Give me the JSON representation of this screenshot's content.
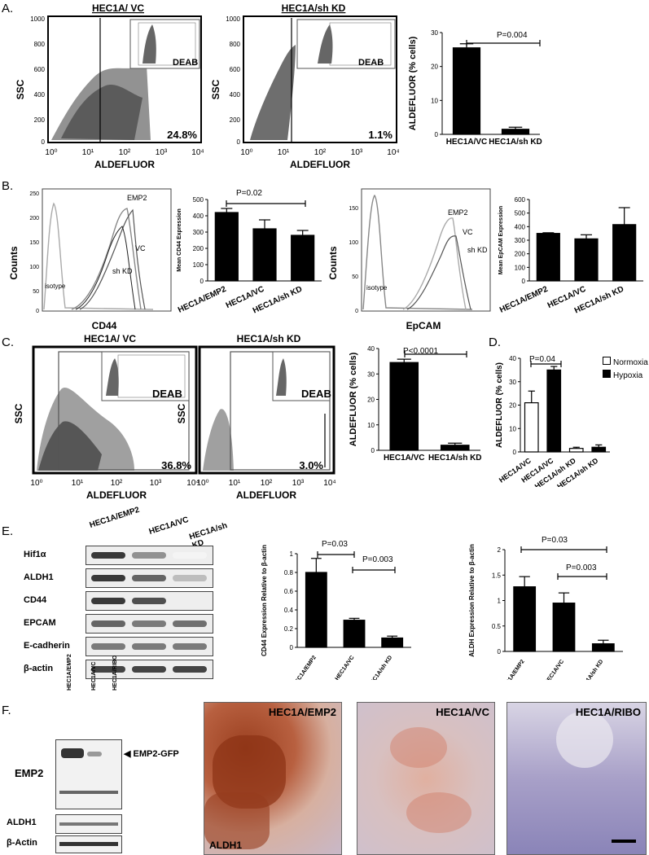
{
  "panels": {
    "A": {
      "letter": "A.",
      "flow": [
        {
          "title": "HEC1A/ VC",
          "inset": "DEAB",
          "percent": "24.8%",
          "ylabel": "SSC",
          "xlabel": "ALDEFLUOR"
        },
        {
          "title": "HEC1A/sh KD",
          "inset": "DEAB",
          "percent": "1.1%",
          "ylabel": "SSC",
          "xlabel": "ALDEFLUOR"
        }
      ],
      "yticks": [
        "1000",
        "800",
        "600",
        "400",
        "200",
        "0"
      ],
      "xticks": [
        "10⁰",
        "10¹",
        "10²",
        "10³",
        "10⁴"
      ],
      "pvalue": "P=0.004"
    },
    "B": {
      "letter": "B.",
      "hist1": {
        "ylabel": "Counts",
        "xlabel": "CD44",
        "labels": [
          "EMP2",
          "VC",
          "sh KD",
          "isotype"
        ],
        "yticks": [
          "250",
          "200",
          "150",
          "100",
          "50",
          "0"
        ]
      },
      "hist2": {
        "ylabel": "Counts",
        "xlabel": "EpCAM",
        "labels": [
          "EMP2",
          "VC",
          "sh KD",
          "isotype"
        ],
        "yticks": [
          "150",
          "100",
          "50",
          "0"
        ]
      },
      "pvalue": "P=0.02"
    },
    "C": {
      "letter": "C.",
      "flow": [
        {
          "title": "HEC1A/ VC",
          "inset": "DEAB",
          "percent": "36.8%",
          "ylabel": "SSC",
          "xlabel": "ALDEFLUOR"
        },
        {
          "title": "HEC1A/sh KD",
          "inset": "DEAB",
          "percent": "3.0%",
          "ylabel": "SSC",
          "xlabel": "ALDEFLUOR"
        }
      ],
      "pvalue": "P<0.0001"
    },
    "D": {
      "letter": "D.",
      "pvalue": "P=0.04",
      "legend": [
        "Normoxia",
        "Hypoxia"
      ]
    },
    "E": {
      "letter": "E.",
      "lanes": [
        "HEC1A/EMP2",
        "HEC1A/VC",
        "HEC1A/sh KD"
      ],
      "blots": [
        "Hif1α",
        "ALDH1",
        "CD44",
        "EPCAM",
        "E-cadherin",
        "β-actin"
      ],
      "pvalues_cd44": [
        "P=0.03",
        "P=0.003"
      ],
      "pvalues_aldh": [
        "P=0.03",
        "P=0.003"
      ]
    },
    "F": {
      "letter": "F.",
      "lanes": [
        "HEC1A/EMP2",
        "HEC1A/VC",
        "HEC1A/RIBO"
      ],
      "blots": [
        "EMP2",
        "ALDH1",
        "β-Actin"
      ],
      "arrow_label": "◀ EMP2-GFP",
      "ihc": [
        "HEC1A/EMP2",
        "HEC1A/VC",
        "HEC1A/RIBO"
      ],
      "ihc_stain": "ALDH1"
    }
  },
  "chart_data": [
    {
      "type": "bar",
      "panel": "A",
      "categories": [
        "HEC1A/VC",
        "HEC1A/sh KD"
      ],
      "values": [
        25.5,
        1.5
      ],
      "errors": [
        1.2,
        0.6
      ],
      "ylabel": "ALDEFLUOR (% cells)",
      "ylim": [
        0,
        30
      ],
      "yticks": [
        0,
        10,
        20,
        30
      ]
    },
    {
      "type": "bar",
      "panel": "B1",
      "categories": [
        "HEC1A/EMP2",
        "HEC1A/VC",
        "HEC1A/sh KD"
      ],
      "values": [
        420,
        320,
        280
      ],
      "errors": [
        25,
        55,
        30
      ],
      "ylabel": "Mean CD44 Expression",
      "ylim": [
        0,
        500
      ],
      "yticks": [
        0,
        100,
        200,
        300,
        400,
        500
      ]
    },
    {
      "type": "bar",
      "panel": "B2",
      "categories": [
        "HEC1A/EMP2",
        "HEC1A/VC",
        "HEC1A/sh KD"
      ],
      "values": [
        350,
        310,
        415
      ],
      "errors": [
        5,
        30,
        125
      ],
      "ylabel": "Mean EpCAM Expression",
      "ylim": [
        0,
        600
      ],
      "yticks": [
        0,
        100,
        200,
        300,
        400,
        500,
        600
      ]
    },
    {
      "type": "bar",
      "panel": "C",
      "categories": [
        "HEC1A/VC",
        "HEC1A/sh KD"
      ],
      "values": [
        34.5,
        2
      ],
      "errors": [
        1.3,
        0.8
      ],
      "ylabel": "ALDEFLUOR (% cells)",
      "ylim": [
        0,
        40
      ],
      "yticks": [
        0,
        10,
        20,
        30,
        40
      ]
    },
    {
      "type": "bar",
      "panel": "D",
      "categories": [
        "HEC1A/VC",
        "HEC1A/VC",
        "HEC1A/sh KD",
        "HEC1A/sh KD"
      ],
      "values": [
        21,
        35,
        1.5,
        2
      ],
      "errors": [
        5,
        1.5,
        0.5,
        1
      ],
      "fills": [
        "#ffffff",
        "#000000",
        "#ffffff",
        "#000000"
      ],
      "ylabel": "ALDEFLUOR (% cells)",
      "ylim": [
        0,
        40
      ],
      "yticks": [
        0,
        10,
        20,
        30,
        40
      ]
    },
    {
      "type": "bar",
      "panel": "E1",
      "categories": [
        "HEC1A/EMP2",
        "HEC1A/VC",
        "HEC1A/sh KD"
      ],
      "values": [
        0.8,
        0.29,
        0.1
      ],
      "errors": [
        0.15,
        0.02,
        0.02
      ],
      "ylabel": "CD44 Expression Relative to β-actin",
      "ylim": [
        0,
        1.0
      ],
      "yticks": [
        0,
        0.2,
        0.4,
        0.6,
        0.8,
        1.0
      ]
    },
    {
      "type": "bar",
      "panel": "E2",
      "categories": [
        "HEC1A/EMP2",
        "HEC1A/VC",
        "HEC1A/sh KD"
      ],
      "values": [
        1.27,
        0.95,
        0.15
      ],
      "errors": [
        0.2,
        0.2,
        0.07
      ],
      "ylabel": "ALDH Expression Relative to β-actin",
      "ylim": [
        0,
        2.0
      ],
      "yticks": [
        0,
        0.5,
        1.0,
        1.5,
        2.0
      ]
    }
  ]
}
